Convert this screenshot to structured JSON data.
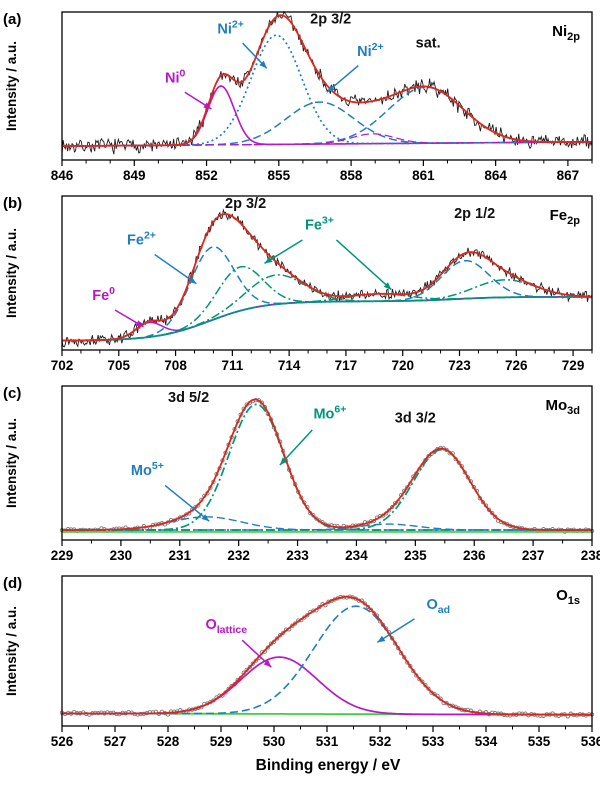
{
  "figure": {
    "xlabel": "Binding energy / eV",
    "ylabel": "Intensity / a.u.",
    "colors": {
      "raw": "#1c1c1c",
      "envelope": "#e0261b",
      "blue": "#1f7ec2",
      "teal": "#009577",
      "magenta": "#b518c6",
      "green": "#44cc44",
      "circles": "#7a7a7a"
    }
  },
  "chart_data": [
    {
      "type": "line",
      "panel_label": "(a)",
      "corner_label": {
        "main": "Ni",
        "sub": "2p"
      },
      "ylabel": "Intensity / a.u.",
      "xlim": [
        846,
        868
      ],
      "ylim": [
        0,
        1
      ],
      "xticks": [
        846,
        849,
        852,
        855,
        858,
        861,
        864,
        867
      ],
      "minor_step": 1,
      "raw_style": "line",
      "noise": 0.045,
      "seed": 7,
      "background": {
        "kind": "linear",
        "y0": 0.085,
        "y1": 0.115
      },
      "bg_draw": {
        "color": "magenta",
        "dash": "8,5",
        "width": 1.2
      },
      "peaks": [
        {
          "name": "Ni0 metallic",
          "center": 852.6,
          "sigma": 0.55,
          "amp": 0.42,
          "color": "magenta",
          "dash": "",
          "width": 1.6
        },
        {
          "name": "Ni2+ main",
          "center": 854.9,
          "sigma": 1.05,
          "amp": 0.78,
          "color": "blue",
          "dash": "2,3",
          "width": 1.7
        },
        {
          "name": "Ni2+ shoulder",
          "center": 856.7,
          "sigma": 1.4,
          "amp": 0.3,
          "color": "blue",
          "dash": "8,4",
          "width": 1.5
        },
        {
          "name": "satellite",
          "center": 861.1,
          "sigma": 1.55,
          "amp": 0.4,
          "color": "blue",
          "dash": "8,4",
          "width": 1.5
        },
        {
          "name": "satellite small",
          "center": 858.9,
          "sigma": 0.9,
          "amp": 0.07,
          "color": "magenta",
          "dash": "8,4",
          "width": 1.2
        }
      ],
      "annotations": [
        {
          "parts": [
            {
              "t": "2p 3/2"
            }
          ],
          "color": "#111111",
          "x": 856.3,
          "y": 0.96,
          "anchor": "start"
        },
        {
          "parts": [
            {
              "t": "sat."
            }
          ],
          "color": "#111111",
          "x": 861.2,
          "y": 0.79,
          "anchor": "middle"
        },
        {
          "parts": [
            {
              "t": "Ni"
            },
            {
              "t": "2+",
              "sup": true
            }
          ],
          "color": "blue",
          "x": 853.0,
          "y": 0.89,
          "anchor": "middle",
          "arrows": [
            [
              853.5,
              0.82,
              854.5,
              0.64
            ]
          ]
        },
        {
          "parts": [
            {
              "t": "Ni"
            },
            {
              "t": "2+",
              "sup": true
            }
          ],
          "color": "blue",
          "x": 858.8,
          "y": 0.73,
          "anchor": "middle",
          "arrows": [
            [
              858.3,
              0.66,
              857.0,
              0.47
            ]
          ]
        },
        {
          "parts": [
            {
              "t": "Ni"
            },
            {
              "t": "0",
              "sup": true
            }
          ],
          "color": "magenta",
          "x": 850.7,
          "y": 0.54,
          "anchor": "middle",
          "arrows": [
            [
              851.1,
              0.47,
              852.2,
              0.35
            ]
          ]
        }
      ]
    },
    {
      "type": "line",
      "panel_label": "(b)",
      "corner_label": {
        "main": "Fe",
        "sub": "2p"
      },
      "ylabel": "Intensity / a.u.",
      "xlim": [
        702,
        730
      ],
      "ylim": [
        0,
        1
      ],
      "xticks": [
        702,
        705,
        708,
        711,
        714,
        717,
        720,
        723,
        726,
        729
      ],
      "minor_step": 1,
      "raw_style": "line",
      "noise": 0.032,
      "seed": 13,
      "background": {
        "kind": "sigmoid",
        "base": 0.05,
        "steps": [
          {
            "x": 709.8,
            "w": 1.4,
            "h": 0.27
          },
          {
            "x": 722.8,
            "w": 1.2,
            "h": 0.03
          }
        ]
      },
      "bg_draw": {
        "color": "teal",
        "dash": "",
        "width": 1.8
      },
      "peaks": [
        {
          "name": "Fe0 metallic",
          "center": 706.6,
          "sigma": 0.7,
          "amp": 0.1,
          "color": "magenta",
          "dash": "",
          "width": 1.5
        },
        {
          "name": "Fe2+ 2p3/2",
          "center": 709.9,
          "sigma": 1.15,
          "amp": 0.5,
          "color": "blue",
          "dash": "8,4",
          "width": 1.5
        },
        {
          "name": "Fe3+ 2p3/2 a",
          "center": 711.4,
          "sigma": 1.2,
          "amp": 0.3,
          "color": "teal",
          "dash": "9,3,2,3",
          "width": 1.5
        },
        {
          "name": "Fe3+ 2p3/2 b",
          "center": 713.3,
          "sigma": 1.5,
          "amp": 0.2,
          "color": "teal",
          "dash": "9,3,2,3",
          "width": 1.5
        },
        {
          "name": "Fe3+ satellite",
          "center": 718.8,
          "sigma": 1.6,
          "amp": 0.05,
          "color": "teal",
          "dash": "9,3,2,3",
          "width": 1.5
        },
        {
          "name": "Fe2+ 2p1/2",
          "center": 723.3,
          "sigma": 1.25,
          "amp": 0.26,
          "color": "blue",
          "dash": "8,4",
          "width": 1.5
        },
        {
          "name": "Fe3+ 2p1/2",
          "center": 725.4,
          "sigma": 1.6,
          "amp": 0.12,
          "color": "teal",
          "dash": "9,3,2,3",
          "width": 1.5
        }
      ],
      "annotations": [
        {
          "parts": [
            {
              "t": "2p 3/2"
            }
          ],
          "color": "#111111",
          "x": 711.7,
          "y": 0.96,
          "anchor": "middle"
        },
        {
          "parts": [
            {
              "t": "2p 1/2"
            }
          ],
          "color": "#111111",
          "x": 723.8,
          "y": 0.89,
          "anchor": "middle"
        },
        {
          "parts": [
            {
              "t": "Fe"
            },
            {
              "t": "2+",
              "sup": true
            }
          ],
          "color": "blue",
          "x": 706.2,
          "y": 0.71,
          "anchor": "middle",
          "arrows": [
            [
              706.9,
              0.64,
              709.1,
              0.44
            ]
          ]
        },
        {
          "parts": [
            {
              "t": "Fe"
            },
            {
              "t": "3+",
              "sup": true
            }
          ],
          "color": "teal",
          "x": 715.6,
          "y": 0.81,
          "anchor": "middle",
          "arrows": [
            [
              714.7,
              0.74,
              712.7,
              0.58
            ],
            [
              716.5,
              0.74,
              719.4,
              0.4
            ]
          ]
        },
        {
          "parts": [
            {
              "t": "Fe"
            },
            {
              "t": "0",
              "sup": true
            }
          ],
          "color": "magenta",
          "x": 704.2,
          "y": 0.33,
          "anchor": "middle",
          "arrows": [
            [
              704.8,
              0.26,
              706.3,
              0.145
            ]
          ]
        }
      ]
    },
    {
      "type": "line",
      "panel_label": "(c)",
      "corner_label": {
        "main": "Mo",
        "sub": "3d"
      },
      "ylabel": "Intensity / a.u.",
      "xlim": [
        229,
        238
      ],
      "ylim": [
        0,
        1
      ],
      "xticks": [
        229,
        230,
        231,
        232,
        233,
        234,
        235,
        236,
        237,
        238
      ],
      "minor_step": 0.5,
      "raw_style": "circles",
      "noise": 0.01,
      "seed": 21,
      "background": {
        "kind": "linear",
        "y0": 0.055,
        "y1": 0.055
      },
      "bg_draw": null,
      "extra_lines": [
        {
          "y": 0.042,
          "color": "green",
          "width": 1.6
        }
      ],
      "peaks": [
        {
          "name": "Mo5+ 3d5/2",
          "center": 231.45,
          "sigma": 0.6,
          "amp": 0.09,
          "color": "blue",
          "dash": "8,4",
          "width": 1.4
        },
        {
          "name": "Mo6+ 3d5/2",
          "center": 232.3,
          "sigma": 0.46,
          "amp": 0.86,
          "color": "teal",
          "dash": "9,3,2,3",
          "width": 1.7
        },
        {
          "name": "Mo5+ 3d3/2",
          "center": 234.55,
          "sigma": 0.5,
          "amp": 0.04,
          "color": "blue",
          "dash": "8,4",
          "width": 1.4
        },
        {
          "name": "Mo6+ 3d3/2",
          "center": 235.45,
          "sigma": 0.48,
          "amp": 0.55,
          "color": "teal",
          "dash": "9,3,2,3",
          "width": 1.7
        }
      ],
      "annotations": [
        {
          "parts": [
            {
              "t": "3d 5/2"
            }
          ],
          "color": "#111111",
          "x": 231.15,
          "y": 0.93,
          "anchor": "middle"
        },
        {
          "parts": [
            {
              "t": "3d 3/2"
            }
          ],
          "color": "#111111",
          "x": 235.0,
          "y": 0.79,
          "anchor": "middle"
        },
        {
          "parts": [
            {
              "t": "Mo"
            },
            {
              "t": "6+",
              "sup": true
            }
          ],
          "color": "teal",
          "x": 233.55,
          "y": 0.82,
          "anchor": "middle",
          "arrows": [
            [
              233.25,
              0.74,
              232.7,
              0.5
            ]
          ]
        },
        {
          "parts": [
            {
              "t": "Mo"
            },
            {
              "t": "5+",
              "sup": true
            }
          ],
          "color": "blue",
          "x": 230.45,
          "y": 0.43,
          "anchor": "middle",
          "arrows": [
            [
              230.75,
              0.36,
              231.5,
              0.115
            ]
          ]
        }
      ]
    },
    {
      "type": "line",
      "panel_label": "(d)",
      "corner_label": {
        "main": "O",
        "sub": "1s"
      },
      "ylabel": "Intensity / a.u.",
      "xlim": [
        526,
        536
      ],
      "ylim": [
        0,
        1
      ],
      "xticks": [
        526,
        527,
        528,
        529,
        530,
        531,
        532,
        533,
        534,
        535,
        536
      ],
      "minor_step": 0.5,
      "raw_style": "circles",
      "noise": 0.009,
      "seed": 33,
      "background": {
        "kind": "linear",
        "y0": 0.075,
        "y1": 0.065
      },
      "bg_draw": {
        "color": "green",
        "dash": "",
        "width": 1.8
      },
      "peaks": [
        {
          "name": "O lattice",
          "center": 530.1,
          "sigma": 0.72,
          "amp": 0.4,
          "color": "magenta",
          "dash": "",
          "width": 1.7
        },
        {
          "name": "O adsorbed",
          "center": 531.55,
          "sigma": 0.8,
          "amp": 0.76,
          "color": "blue",
          "dash": "8,4",
          "width": 1.6
        }
      ],
      "annotations": [
        {
          "parts": [
            {
              "t": "O"
            },
            {
              "t": "lattice",
              "sub": true
            }
          ],
          "color": "magenta",
          "x": 529.1,
          "y": 0.67,
          "anchor": "middle",
          "arrows": [
            [
              529.4,
              0.59,
              529.95,
              0.4
            ]
          ]
        },
        {
          "parts": [
            {
              "t": "O"
            },
            {
              "t": "ad",
              "sub": true
            }
          ],
          "color": "blue",
          "x": 533.1,
          "y": 0.81,
          "anchor": "middle",
          "arrows": [
            [
              532.65,
              0.74,
              531.95,
              0.575
            ]
          ]
        }
      ]
    }
  ]
}
